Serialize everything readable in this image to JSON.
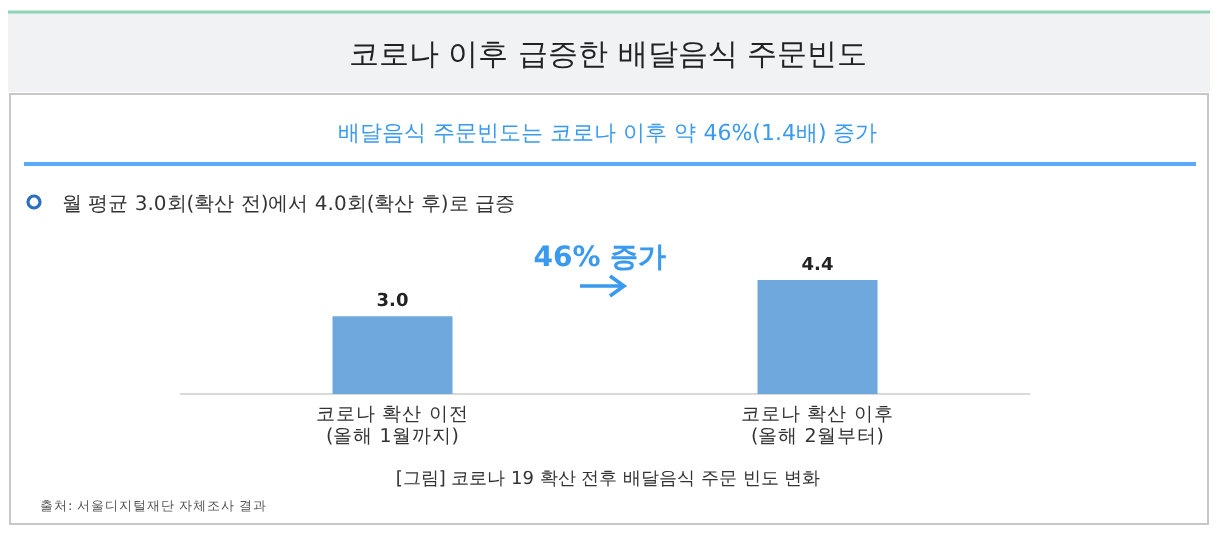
{
  "chart_data": {
    "type": "bar",
    "title": "코로나 이후 급증한 배달음식 주문빈도",
    "subtitle": "배달음식 주문빈도는 코로나 이후 약 46%(1.4배) 증가",
    "categories": [
      "코로나 확산 이전\n(올해 1월까지)",
      "코로나 확산 이후\n(올해 2월부터)"
    ],
    "values": [
      3.0,
      4.4
    ],
    "value_labels": [
      "3.0",
      "4.4"
    ],
    "color": "#6fa8dc",
    "annotations": [
      "월 평균 3.0회(확산 전)에서 4.0회(확산 후)로 급증",
      "46% 증가",
      "[그림] 코로나 19 확산 전후 배달음식 주문 빈도 변화",
      "출처: 서울디지털재단 자체조사 결과"
    ]
  }
}
